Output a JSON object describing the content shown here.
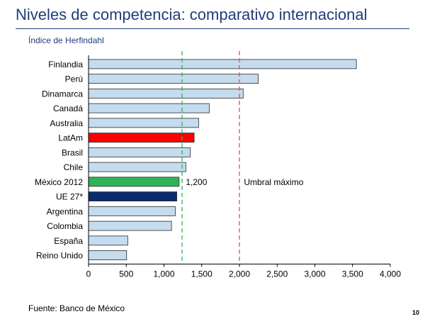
{
  "slide": {
    "title": "Niveles de competencia: comparativo internacional",
    "ylabel": "Índice de Herfindahl",
    "source": "Fuente: Banco de México",
    "page": "10"
  },
  "colors": {
    "title": "#1f3d7a",
    "bar_default": "#c5dbee",
    "bar_border": "#2b2b2b",
    "latam": "#ff0000",
    "mexico": "#2db35a",
    "ue": "#0b2b6e",
    "green_line": "#2db35a",
    "red_line": "#e05050"
  },
  "chart_data": {
    "type": "bar",
    "orientation": "horizontal",
    "categories": [
      "Finlandia",
      "Perú",
      "Dinamarca",
      "Canadá",
      "Australia",
      "LatAm",
      "Brasil",
      "Chile",
      "México 2012",
      "UE 27*",
      "Argentina",
      "Colombia",
      "España",
      "Reino Unido"
    ],
    "values": [
      3550,
      2250,
      2050,
      1600,
      1460,
      1400,
      1350,
      1290,
      1200,
      1170,
      1150,
      1100,
      520,
      505
    ],
    "highlight": {
      "LatAm": "latam",
      "México 2012": "mexico",
      "UE 27*": "ue"
    },
    "xlim": [
      0,
      4000
    ],
    "xticks": [
      0,
      500,
      1000,
      1500,
      2000,
      2500,
      3000,
      3500,
      4000
    ],
    "xtick_labels": [
      "0",
      "500",
      "1,000",
      "1,500",
      "2,000",
      "2,500",
      "3,000",
      "3,500",
      "4,000"
    ],
    "reference_lines": [
      {
        "value": 1240,
        "color": "green_line",
        "style": "dashed"
      },
      {
        "value": 2000,
        "color": "red_line",
        "style": "dashed"
      }
    ],
    "annotations": [
      {
        "text": "1,200",
        "x": 1290,
        "category": "México 2012"
      },
      {
        "text": "Umbral máximo",
        "x": 2060,
        "category": "México 2012"
      }
    ],
    "grid": false,
    "legend": "none"
  }
}
